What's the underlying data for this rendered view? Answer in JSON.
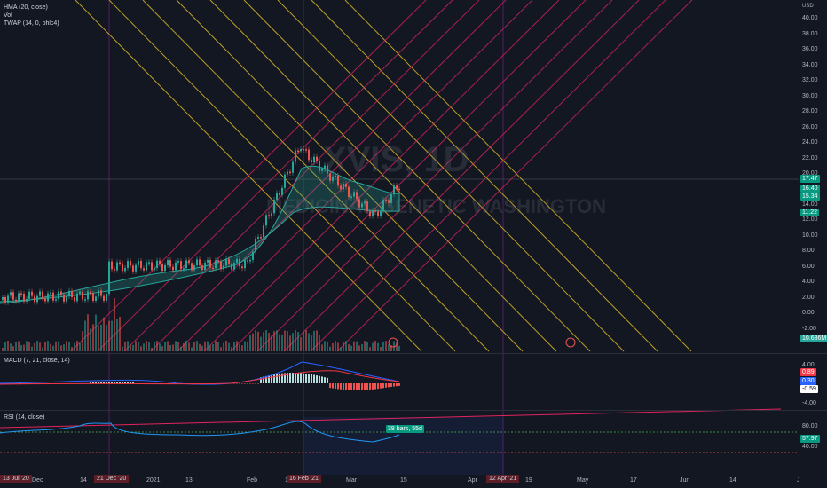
{
  "symbol_watermark": "XVIS, 1D",
  "company_watermark": "MEDICINAL GENETIC WASHINGTON",
  "legends": {
    "hma": "HMA (20, close)",
    "vol": "Vol",
    "twap": "TWAP (14, 0, ohlc4)",
    "macd": "MACD (7, 21, close, 14)",
    "rsi": "RSI (14, close)"
  },
  "currency": "USD",
  "price_axis": [
    "40.00",
    "38.00",
    "36.00",
    "34.00",
    "32.00",
    "30.00",
    "28.00",
    "26.00",
    "24.00",
    "22.00",
    "20.00",
    "18.00",
    "14.00",
    "12.00",
    "10.00",
    "8.00",
    "6.00",
    "4.00",
    "2.00",
    "0.00",
    "-2.00"
  ],
  "price_badges": [
    {
      "text": "17.47",
      "color": "#089981"
    },
    {
      "text": "16.40",
      "color": "#089981"
    },
    {
      "text": "15.34",
      "color": "#089981"
    },
    {
      "text": "11.22",
      "color": "#089981"
    },
    {
      "text": "10.636M",
      "color": "#26a69a"
    }
  ],
  "macd_axis": [
    "4.00",
    "-4.00"
  ],
  "macd_badges": [
    {
      "text": "0.89",
      "color": "#f23645"
    },
    {
      "text": "0.30",
      "color": "#2962ff"
    },
    {
      "text": "-0.59",
      "color": "#ffffff"
    }
  ],
  "rsi_axis": [
    "80.00",
    "40.00"
  ],
  "rsi_badge": {
    "text": "57.97",
    "color": "#089981"
  },
  "rsi_range_label": "38 bars, 55d",
  "earnings_marker": "E",
  "x_labels": [
    "Dec",
    "14",
    "2021",
    "13",
    "Feb",
    "10",
    "Mar",
    "15",
    "Apr",
    "19",
    "May",
    "17",
    "Jun",
    "14",
    "J"
  ],
  "x_badges": [
    "13 Jul '20",
    "21 Dec '20",
    "16 Feb '21",
    "12 Apr '21"
  ]
}
